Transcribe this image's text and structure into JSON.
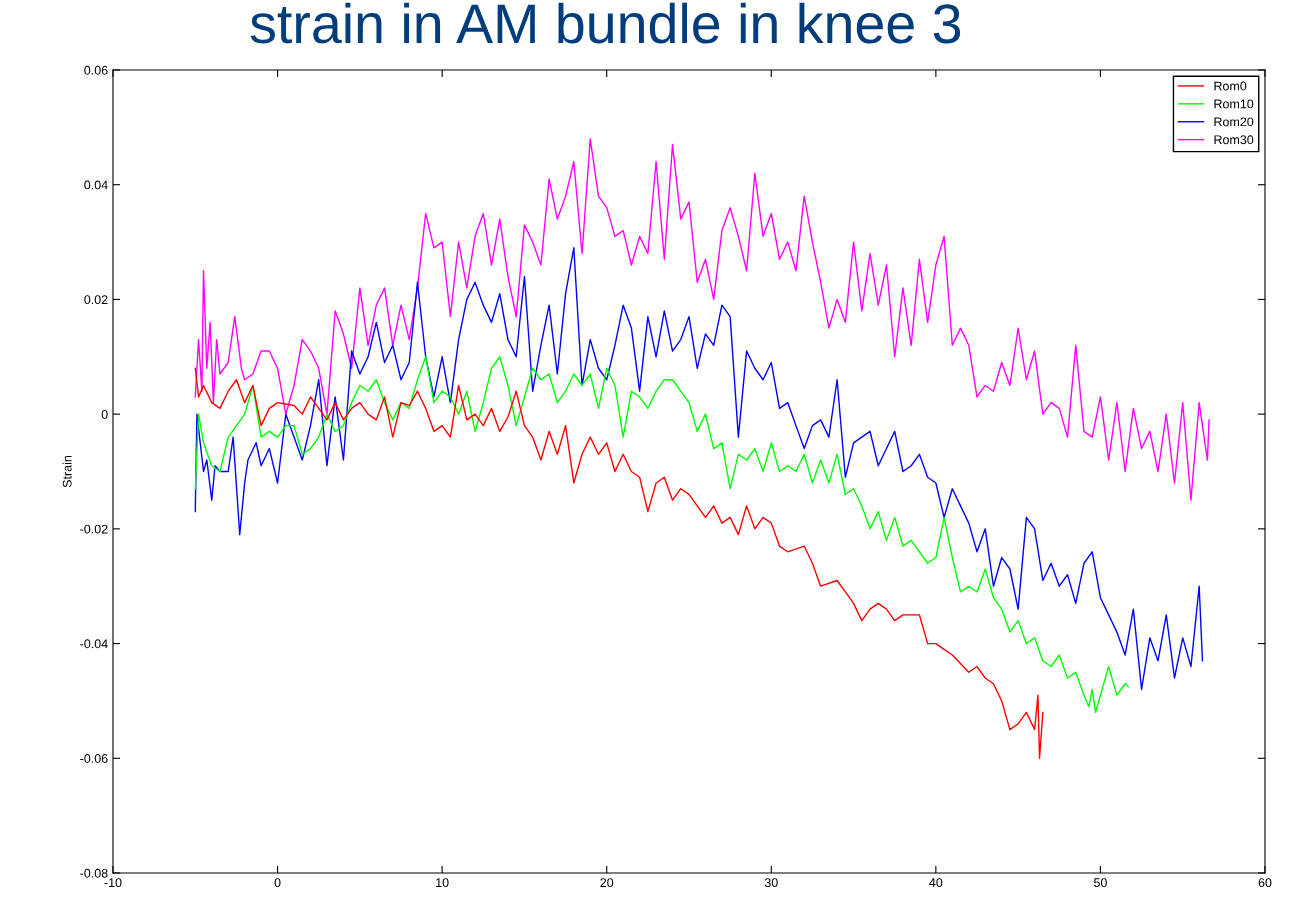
{
  "chart_data": {
    "type": "line",
    "title": "strain in AM bundle in knee 3",
    "ylabel": "Strain",
    "xlim": [
      -10,
      60
    ],
    "xticks": [
      -10,
      0,
      10,
      20,
      30,
      40,
      50,
      60
    ],
    "ylim": [
      -0.08,
      0.06
    ],
    "yticks": [
      -0.08,
      -0.06,
      -0.04,
      -0.02,
      0,
      0.02,
      0.04,
      0.06
    ],
    "grid": false,
    "legend": "top right",
    "marker": "none",
    "line_style": "solid",
    "series": [
      {
        "name": "Rom0",
        "color": "#ff0000",
        "x": [
          -5,
          -4.8,
          -4.5,
          -4,
          -3.5,
          -3,
          -2.5,
          -2,
          -1.5,
          -1,
          -0.5,
          0,
          1,
          1.5,
          2,
          2.5,
          3,
          3.5,
          4,
          4.5,
          5,
          5.5,
          6,
          6.5,
          7,
          7.5,
          8,
          8.5,
          9,
          9.5,
          10,
          10.5,
          11,
          11.5,
          12,
          12.5,
          13,
          13.5,
          14,
          14.5,
          15,
          15.5,
          16,
          16.5,
          17,
          17.5,
          18,
          18.5,
          19,
          19.5,
          20,
          20.5,
          21,
          21.5,
          22,
          22.5,
          23,
          23.5,
          24,
          24.5,
          25,
          26,
          26.5,
          27,
          27.5,
          28,
          28.5,
          29,
          29.5,
          30,
          30.5,
          31,
          32,
          32.5,
          33,
          34,
          34.5,
          35,
          35.5,
          36,
          36.5,
          37,
          37.5,
          38,
          39,
          39.5,
          40,
          40.5,
          41,
          42,
          42.5,
          43,
          43.5,
          44,
          44.5,
          45,
          45.5,
          46,
          46.2,
          46.3,
          46.5
        ],
        "values": [
          0.008,
          0.003,
          0.005,
          0.002,
          0.001,
          0.004,
          0.006,
          0.002,
          0.005,
          -0.002,
          0.001,
          0.002,
          0.0015,
          0,
          0.003,
          0.001,
          -0.001,
          0.002,
          -0.001,
          0.001,
          0.002,
          0,
          -0.001,
          0.003,
          -0.004,
          0.002,
          0.0015,
          0.004,
          0.001,
          -0.003,
          -0.002,
          -0.004,
          0.005,
          -0.001,
          0,
          -0.002,
          0.001,
          -0.003,
          -0.0005,
          0.004,
          -0.002,
          -0.004,
          -0.008,
          -0.003,
          -0.007,
          -0.002,
          -0.012,
          -0.007,
          -0.004,
          -0.007,
          -0.005,
          -0.01,
          -0.007,
          -0.01,
          -0.011,
          -0.017,
          -0.012,
          -0.011,
          -0.015,
          -0.013,
          -0.014,
          -0.018,
          -0.016,
          -0.019,
          -0.018,
          -0.021,
          -0.016,
          -0.02,
          -0.018,
          -0.019,
          -0.023,
          -0.024,
          -0.023,
          -0.026,
          -0.03,
          -0.029,
          -0.031,
          -0.033,
          -0.036,
          -0.034,
          -0.033,
          -0.034,
          -0.036,
          -0.035,
          -0.035,
          -0.04,
          -0.04,
          -0.041,
          -0.042,
          -0.045,
          -0.044,
          -0.046,
          -0.047,
          -0.05,
          -0.055,
          -0.054,
          -0.052,
          -0.055,
          -0.049,
          -0.06,
          -0.052
        ]
      },
      {
        "name": "Rom10",
        "color": "#00ff00",
        "x": [
          -5,
          -4.8,
          -4.5,
          -4,
          -3.5,
          -3,
          -2.5,
          -2,
          -1.5,
          -1,
          -0.5,
          0,
          0.5,
          1,
          1.5,
          2,
          2.5,
          3,
          3.5,
          4,
          4.5,
          5,
          5.5,
          6,
          6.5,
          7,
          7.5,
          8,
          8.5,
          9,
          9.5,
          10,
          10.5,
          11,
          11.5,
          12,
          12.5,
          13,
          13.5,
          14,
          14.5,
          15,
          15.5,
          16,
          16.5,
          17,
          17.5,
          18,
          18.5,
          19,
          19.5,
          20,
          20.5,
          21,
          21.5,
          22,
          22.5,
          23,
          23.5,
          24,
          24.5,
          25,
          25.5,
          26,
          26.5,
          27,
          27.5,
          28,
          28.5,
          29,
          29.5,
          30,
          30.5,
          31,
          31.5,
          32,
          32.5,
          33,
          33.5,
          34,
          34.5,
          35,
          35.5,
          36,
          36.5,
          37,
          37.5,
          38,
          38.5,
          39,
          39.5,
          40,
          40.5,
          41,
          41.5,
          42,
          42.5,
          43,
          43.5,
          44,
          44.5,
          45,
          45.5,
          46,
          46.5,
          47,
          47.5,
          48,
          48.5,
          49,
          49.3,
          49.5,
          49.7,
          50,
          50.5,
          51,
          51.5,
          51.7
        ],
        "values": [
          -0.013,
          0,
          -0.005,
          -0.009,
          -0.01,
          -0.004,
          -0.002,
          0,
          0.005,
          -0.004,
          -0.003,
          -0.004,
          -0.002,
          -0.002,
          -0.007,
          -0.006,
          -0.004,
          0,
          -0.003,
          -0.002,
          0.002,
          0.005,
          0.004,
          0.006,
          0.002,
          -0.001,
          0.002,
          0.001,
          0.006,
          0.01,
          0.002,
          0.004,
          0.003,
          0,
          0.004,
          -0.003,
          0.002,
          0.008,
          0.01,
          0.005,
          -0.002,
          0.003,
          0.008,
          0.006,
          0.007,
          0.002,
          0.004,
          0.007,
          0.005,
          0.007,
          0.001,
          0.008,
          0.005,
          -0.004,
          0.004,
          0.003,
          0.001,
          0.004,
          0.006,
          0.006,
          0.004,
          0.002,
          -0.003,
          0,
          -0.006,
          -0.005,
          -0.013,
          -0.007,
          -0.008,
          -0.006,
          -0.01,
          -0.005,
          -0.01,
          -0.009,
          -0.01,
          -0.007,
          -0.012,
          -0.008,
          -0.012,
          -0.007,
          -0.014,
          -0.013,
          -0.016,
          -0.02,
          -0.017,
          -0.022,
          -0.018,
          -0.023,
          -0.022,
          -0.024,
          -0.026,
          -0.025,
          -0.018,
          -0.025,
          -0.031,
          -0.03,
          -0.031,
          -0.027,
          -0.032,
          -0.034,
          -0.038,
          -0.036,
          -0.04,
          -0.039,
          -0.043,
          -0.044,
          -0.042,
          -0.046,
          -0.045,
          -0.049,
          -0.051,
          -0.048,
          -0.052,
          -0.049,
          -0.044,
          -0.049,
          -0.047,
          -0.0475
        ]
      },
      {
        "name": "Rom20",
        "color": "#0000ff",
        "x": [
          -5,
          -4.9,
          -4.7,
          -4.5,
          -4.3,
          -4,
          -3.8,
          -3.5,
          -3,
          -2.7,
          -2.3,
          -2,
          -1.8,
          -1.3,
          -1,
          -0.5,
          0,
          0.5,
          1,
          1.5,
          2,
          2.5,
          3,
          3.5,
          4,
          4.5,
          5,
          5.5,
          6,
          6.5,
          7,
          7.5,
          8,
          8.5,
          9,
          9.5,
          10,
          10.5,
          11,
          11.5,
          12,
          12.5,
          13,
          13.5,
          14,
          14.5,
          15,
          15.5,
          16,
          16.5,
          17,
          17.5,
          18,
          18.5,
          19,
          19.5,
          20,
          20.5,
          21,
          21.5,
          22,
          22.5,
          23,
          23.5,
          24,
          24.5,
          25,
          25.5,
          26,
          26.5,
          27,
          27.5,
          28,
          28.5,
          29,
          29.5,
          30,
          30.5,
          31,
          31.5,
          32,
          32.5,
          33,
          33.5,
          34,
          34.5,
          35,
          35.5,
          36,
          36.5,
          37,
          37.5,
          38,
          38.5,
          39,
          39.5,
          40,
          40.5,
          41,
          41.5,
          42,
          42.5,
          43,
          43.5,
          44,
          44.5,
          45,
          45.5,
          46,
          46.5,
          47,
          47.5,
          48,
          48.5,
          49,
          49.5,
          50,
          50.5,
          51,
          51.5,
          52,
          52.5,
          53,
          53.5,
          54,
          54.5,
          55,
          55.5,
          56,
          56.2
        ],
        "values": [
          -0.017,
          0,
          -0.005,
          -0.01,
          -0.008,
          -0.015,
          -0.009,
          -0.01,
          -0.01,
          -0.004,
          -0.021,
          -0.012,
          -0.008,
          -0.005,
          -0.009,
          -0.006,
          -0.012,
          0,
          -0.004,
          -0.008,
          -0.002,
          0.006,
          -0.009,
          0.003,
          -0.008,
          0.011,
          0.007,
          0.01,
          0.016,
          0.009,
          0.012,
          0.006,
          0.009,
          0.023,
          0.01,
          0.003,
          0.01,
          0.002,
          0.013,
          0.02,
          0.023,
          0.019,
          0.016,
          0.021,
          0.013,
          0.01,
          0.024,
          0.004,
          0.012,
          0.019,
          0.007,
          0.021,
          0.029,
          0.005,
          0.013,
          0.008,
          0.006,
          0.012,
          0.019,
          0.015,
          0.004,
          0.017,
          0.01,
          0.018,
          0.011,
          0.013,
          0.017,
          0.008,
          0.014,
          0.012,
          0.019,
          0.017,
          -0.004,
          0.011,
          0.008,
          0.006,
          0.009,
          0.001,
          0.002,
          -0.002,
          -0.006,
          -0.002,
          -0.001,
          -0.004,
          0.006,
          -0.011,
          -0.005,
          -0.004,
          -0.003,
          -0.009,
          -0.006,
          -0.003,
          -0.01,
          -0.009,
          -0.007,
          -0.011,
          -0.012,
          -0.018,
          -0.013,
          -0.016,
          -0.019,
          -0.024,
          -0.02,
          -0.03,
          -0.025,
          -0.027,
          -0.034,
          -0.018,
          -0.02,
          -0.029,
          -0.026,
          -0.03,
          -0.028,
          -0.033,
          -0.026,
          -0.024,
          -0.032,
          -0.035,
          -0.038,
          -0.042,
          -0.034,
          -0.048,
          -0.039,
          -0.043,
          -0.035,
          -0.046,
          -0.039,
          -0.044,
          -0.03,
          -0.043
        ]
      },
      {
        "name": "Rom30",
        "color": "#ff00ff",
        "x": [
          -5,
          -4.8,
          -4.6,
          -4.5,
          -4.3,
          -4.1,
          -3.9,
          -3.7,
          -3.5,
          -3,
          -2.6,
          -2.2,
          -2,
          -1.5,
          -1,
          -0.5,
          0,
          0.5,
          1,
          1.5,
          2,
          2.5,
          3,
          3.5,
          4,
          4.5,
          5,
          5.5,
          6,
          6.5,
          7,
          7.5,
          8,
          8.5,
          9,
          9.5,
          10,
          10.5,
          11,
          11.5,
          12,
          12.5,
          13,
          13.5,
          14,
          14.5,
          15,
          15.5,
          16,
          16.5,
          17,
          17.5,
          18,
          18.5,
          19,
          19.5,
          20,
          20.5,
          21,
          21.5,
          22,
          22.5,
          23,
          23.5,
          24,
          24.5,
          25,
          25.5,
          26,
          26.5,
          27,
          27.5,
          28,
          28.5,
          29,
          29.5,
          30,
          30.5,
          31,
          31.5,
          32,
          32.5,
          33,
          33.5,
          34,
          34.5,
          35,
          35.5,
          36,
          36.5,
          37,
          37.5,
          38,
          38.5,
          39,
          39.5,
          40,
          40.5,
          41,
          41.5,
          42,
          42.5,
          43,
          43.5,
          44,
          44.5,
          45,
          45.5,
          46,
          46.5,
          47,
          47.5,
          48,
          48.5,
          49,
          49.5,
          50,
          50.5,
          51,
          51.5,
          52,
          52.5,
          53,
          53.5,
          54,
          54.5,
          55,
          55.5,
          56,
          56.5,
          56.6
        ],
        "values": [
          0.003,
          0.013,
          0.004,
          0.025,
          0.008,
          0.016,
          0.002,
          0.013,
          0.007,
          0.009,
          0.017,
          0.008,
          0.006,
          0.007,
          0.011,
          0.011,
          0.008,
          0,
          0.005,
          0.013,
          0.011,
          0.008,
          0,
          0.018,
          0.014,
          0.008,
          0.022,
          0.012,
          0.019,
          0.022,
          0.012,
          0.019,
          0.013,
          0.022,
          0.035,
          0.029,
          0.03,
          0.017,
          0.03,
          0.022,
          0.031,
          0.035,
          0.026,
          0.034,
          0.024,
          0.017,
          0.033,
          0.03,
          0.026,
          0.041,
          0.034,
          0.038,
          0.044,
          0.028,
          0.048,
          0.038,
          0.036,
          0.031,
          0.032,
          0.026,
          0.031,
          0.028,
          0.044,
          0.027,
          0.047,
          0.034,
          0.037,
          0.023,
          0.027,
          0.02,
          0.032,
          0.036,
          0.031,
          0.025,
          0.042,
          0.031,
          0.035,
          0.027,
          0.03,
          0.025,
          0.038,
          0.03,
          0.023,
          0.015,
          0.02,
          0.016,
          0.03,
          0.018,
          0.028,
          0.019,
          0.026,
          0.01,
          0.022,
          0.012,
          0.027,
          0.016,
          0.026,
          0.031,
          0.012,
          0.015,
          0.012,
          0.003,
          0.005,
          0.004,
          0.009,
          0.005,
          0.015,
          0.006,
          0.011,
          0,
          0.002,
          0.001,
          -0.004,
          0.012,
          -0.003,
          -0.004,
          0.003,
          -0.008,
          0.002,
          -0.01,
          0.001,
          -0.006,
          -0.003,
          -0.01,
          0,
          -0.012,
          0.002,
          -0.015,
          0.002,
          -0.008,
          -0.001
        ]
      }
    ]
  }
}
